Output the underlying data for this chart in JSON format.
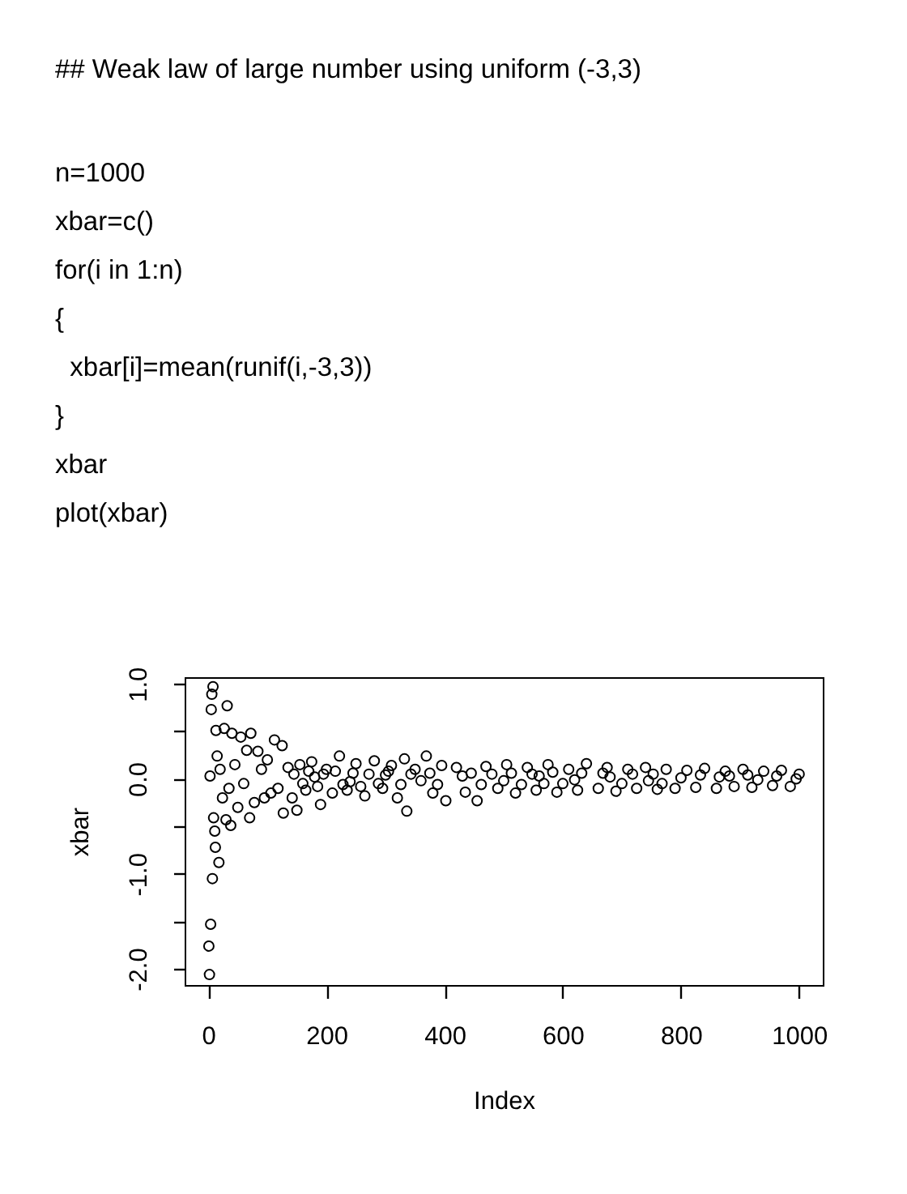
{
  "chart_data": {
    "type": "scatter",
    "title": "## Weak law of large number using uniform (-3,3)",
    "annotations": [
      "n=1000",
      "xbar=c()",
      "for(i in 1:n)",
      "{",
      "  xbar[i]=mean(runif(i,-3,3))",
      "}",
      "xbar",
      "plot(xbar)"
    ],
    "xlabel": "Index",
    "ylabel": "xbar",
    "x": [
      1,
      2,
      3,
      4,
      5,
      6,
      7,
      8,
      9,
      11,
      12,
      13,
      15,
      18,
      20,
      24,
      27,
      30,
      32,
      35,
      38,
      40,
      45,
      50,
      55,
      60,
      65,
      70,
      72,
      78,
      84,
      90,
      95,
      100,
      106,
      112,
      118,
      125,
      127,
      135,
      142,
      145,
      150,
      155,
      160,
      165,
      170,
      175,
      180,
      185,
      190,
      195,
      200,
      210,
      215,
      222,
      228,
      235,
      240,
      245,
      250,
      258,
      265,
      272,
      281,
      288,
      295,
      300,
      305,
      310,
      320,
      326,
      332,
      336,
      343,
      350,
      360,
      369,
      375,
      380,
      388,
      395,
      402,
      420,
      430,
      435,
      445,
      455,
      462,
      470,
      480,
      490,
      500,
      505,
      513,
      520,
      530,
      540,
      548,
      555,
      560,
      568,
      575,
      583,
      590,
      600,
      610,
      620,
      625,
      632,
      640,
      660,
      668,
      675,
      680,
      690,
      700,
      710,
      718,
      725,
      740,
      745,
      753,
      760,
      768,
      775,
      790,
      800,
      810,
      825,
      833,
      840,
      860,
      865,
      875,
      882,
      890,
      905,
      913,
      920,
      930,
      940,
      955,
      962,
      970,
      985,
      995,
      1000
    ],
    "values": [
      -1.76,
      -2.06,
      0.03,
      -1.53,
      0.73,
      0.89,
      -1.05,
      0.97,
      -0.41,
      -0.55,
      -0.72,
      0.51,
      0.24,
      -0.88,
      0.1,
      -0.2,
      0.53,
      -0.43,
      0.77,
      -0.1,
      -0.49,
      0.48,
      0.15,
      -0.3,
      0.44,
      -0.05,
      0.3,
      -0.41,
      0.48,
      -0.25,
      0.29,
      0.1,
      -0.2,
      0.2,
      -0.15,
      0.41,
      -0.1,
      0.35,
      -0.36,
      0.12,
      -0.2,
      0.05,
      -0.33,
      0.15,
      -0.05,
      -0.12,
      0.08,
      0.18,
      0.02,
      -0.08,
      -0.27,
      0.05,
      0.1,
      -0.15,
      0.08,
      0.24,
      -0.06,
      -0.12,
      -0.03,
      0.06,
      0.16,
      -0.08,
      -0.18,
      0.05,
      0.19,
      -0.05,
      -0.1,
      0.04,
      0.08,
      0.14,
      -0.2,
      -0.06,
      0.21,
      -0.34,
      0.05,
      0.1,
      -0.02,
      0.24,
      0.06,
      -0.15,
      -0.06,
      0.14,
      -0.23,
      0.12,
      0.03,
      -0.14,
      0.06,
      -0.23,
      -0.06,
      0.13,
      0.05,
      -0.1,
      -0.02,
      0.15,
      0.06,
      -0.15,
      -0.06,
      0.12,
      0.05,
      -0.12,
      0.03,
      -0.05,
      0.15,
      0.07,
      -0.14,
      -0.05,
      0.1,
      -0.01,
      -0.12,
      0.06,
      0.16,
      -0.1,
      0.06,
      0.12,
      0.02,
      -0.13,
      -0.05,
      0.1,
      0.05,
      -0.1,
      0.12,
      -0.02,
      0.05,
      -0.11,
      -0.05,
      0.1,
      -0.1,
      0.01,
      0.09,
      -0.09,
      0.04,
      0.11,
      -0.1,
      0.02,
      0.08,
      0.03,
      -0.08,
      0.1,
      0.04,
      -0.09,
      -0.01,
      0.08,
      -0.07,
      0.03,
      0.09,
      -0.08,
      0.0,
      0.05
    ],
    "color": "#000000",
    "xlim": [
      -40,
      1040
    ],
    "xticks": [
      0,
      200,
      400,
      600,
      800,
      1000
    ],
    "ylim": [
      -2.17,
      1.07
    ],
    "yticks": [
      {
        "value": -2,
        "label": "-2.0"
      },
      {
        "value": -1.5,
        "label": null
      },
      {
        "value": -1,
        "label": "-1.0"
      },
      {
        "value": -0.5,
        "label": null
      },
      {
        "value": 0,
        "label": "0.0"
      },
      {
        "value": 0.5,
        "label": null
      },
      {
        "value": 1,
        "label": "1.0"
      }
    ],
    "marker": "circle"
  }
}
